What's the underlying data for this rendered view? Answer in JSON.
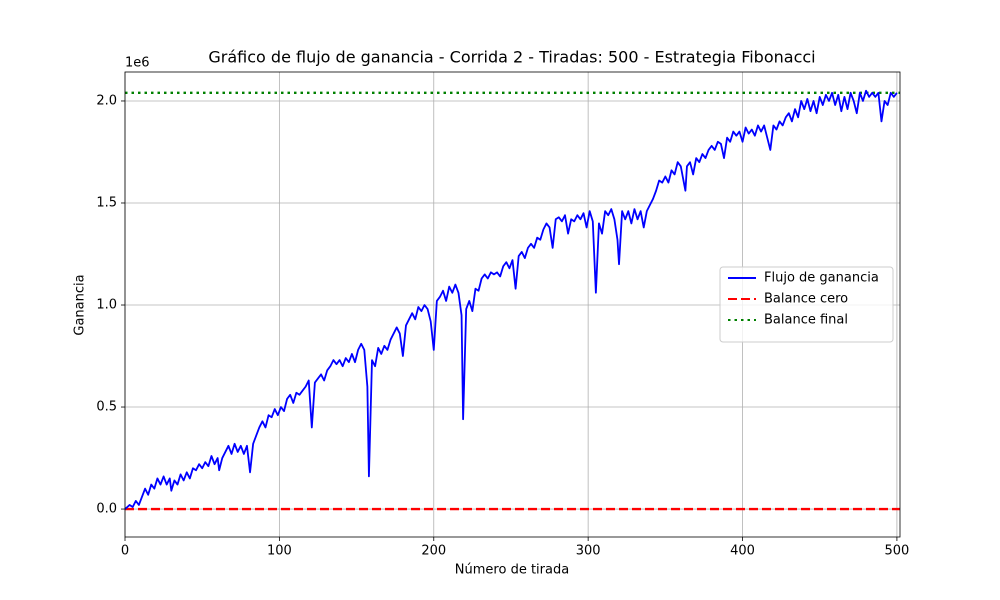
{
  "chart_data": {
    "type": "line",
    "title": "Gráfico de flujo de ganancia - Corrida 2 - Tiradas: 500 - Estrategia Fibonacci",
    "x_label": "Número de tirada",
    "y_label": "Ganancia",
    "y_offset_text": "1e6",
    "xlim": [
      0,
      502
    ],
    "ylim": [
      -137000,
      2142000
    ],
    "xticks": [
      0,
      100,
      200,
      300,
      400,
      500
    ],
    "yticks": [
      {
        "value": 0,
        "label": "0.0"
      },
      {
        "value": 500000,
        "label": "0.5"
      },
      {
        "value": 1000000,
        "label": "1.0"
      },
      {
        "value": 1500000,
        "label": "1.5"
      },
      {
        "value": 2000000,
        "label": "2.0"
      }
    ],
    "grid": true,
    "legend_loc": "center right",
    "series": [
      {
        "name": "Flujo de ganancia",
        "color": "#0000ff",
        "x": [
          0,
          3,
          5,
          7,
          9,
          13,
          15,
          17,
          19,
          21,
          23,
          25,
          27,
          29,
          30,
          32,
          34,
          36,
          38,
          40,
          42,
          44,
          46,
          48,
          50,
          52,
          54,
          56,
          58,
          60,
          61,
          63,
          65,
          67,
          69,
          71,
          73,
          75,
          77,
          79,
          81,
          83,
          85,
          87,
          89,
          91,
          93,
          95,
          97,
          99,
          101,
          103,
          105,
          107,
          109,
          111,
          113,
          115,
          117,
          119,
          121,
          123,
          125,
          127,
          129,
          131,
          133,
          135,
          137,
          139,
          141,
          143,
          145,
          147,
          149,
          151,
          153,
          155,
          157,
          158,
          160,
          162,
          164,
          166,
          168,
          170,
          172,
          174,
          176,
          178,
          180,
          182,
          184,
          186,
          188,
          190,
          192,
          194,
          196,
          198,
          200,
          202,
          204,
          206,
          208,
          210,
          212,
          214,
          216,
          218,
          219,
          221,
          223,
          225,
          227,
          229,
          231,
          233,
          235,
          237,
          239,
          241,
          243,
          245,
          247,
          249,
          251,
          253,
          255,
          257,
          259,
          261,
          263,
          265,
          267,
          269,
          271,
          273,
          275,
          277,
          279,
          281,
          283,
          285,
          287,
          289,
          291,
          293,
          295,
          297,
          299,
          301,
          303,
          305,
          307,
          309,
          311,
          313,
          315,
          317,
          319,
          320,
          322,
          324,
          326,
          328,
          330,
          332,
          334,
          336,
          338,
          340,
          342,
          344,
          346,
          348,
          350,
          352,
          354,
          356,
          358,
          360,
          362,
          363,
          364,
          366,
          368,
          370,
          372,
          374,
          376,
          378,
          380,
          382,
          384,
          386,
          388,
          390,
          392,
          394,
          396,
          398,
          400,
          402,
          404,
          406,
          408,
          410,
          412,
          414,
          416,
          418,
          420,
          422,
          424,
          426,
          428,
          430,
          432,
          434,
          436,
          438,
          440,
          442,
          444,
          446,
          448,
          450,
          452,
          454,
          456,
          458,
          460,
          462,
          464,
          466,
          468,
          470,
          472,
          474,
          476,
          478,
          480,
          482,
          484,
          486,
          488,
          490,
          492,
          494,
          496,
          498,
          500
        ],
        "values": [
          0,
          20000,
          10000,
          40000,
          20000,
          100000,
          70000,
          120000,
          100000,
          150000,
          120000,
          160000,
          120000,
          150000,
          90000,
          140000,
          120000,
          170000,
          140000,
          180000,
          150000,
          200000,
          190000,
          220000,
          200000,
          230000,
          210000,
          260000,
          220000,
          250000,
          190000,
          250000,
          280000,
          310000,
          270000,
          320000,
          280000,
          310000,
          270000,
          310000,
          180000,
          320000,
          360000,
          400000,
          430000,
          400000,
          460000,
          450000,
          490000,
          460000,
          500000,
          480000,
          540000,
          560000,
          520000,
          570000,
          560000,
          580000,
          600000,
          630000,
          400000,
          620000,
          640000,
          660000,
          630000,
          680000,
          700000,
          730000,
          710000,
          730000,
          700000,
          740000,
          720000,
          760000,
          720000,
          780000,
          810000,
          780000,
          600000,
          160000,
          730000,
          700000,
          790000,
          760000,
          800000,
          780000,
          830000,
          860000,
          890000,
          860000,
          750000,
          900000,
          930000,
          960000,
          930000,
          990000,
          970000,
          1000000,
          980000,
          920000,
          780000,
          1020000,
          1040000,
          1070000,
          1020000,
          1090000,
          1060000,
          1100000,
          1060000,
          950000,
          440000,
          980000,
          1020000,
          970000,
          1080000,
          1070000,
          1130000,
          1150000,
          1130000,
          1160000,
          1150000,
          1160000,
          1140000,
          1190000,
          1210000,
          1180000,
          1220000,
          1080000,
          1240000,
          1260000,
          1230000,
          1280000,
          1300000,
          1280000,
          1330000,
          1320000,
          1370000,
          1400000,
          1380000,
          1280000,
          1420000,
          1430000,
          1410000,
          1440000,
          1350000,
          1420000,
          1410000,
          1440000,
          1420000,
          1450000,
          1380000,
          1460000,
          1410000,
          1060000,
          1400000,
          1350000,
          1460000,
          1440000,
          1470000,
          1420000,
          1320000,
          1200000,
          1460000,
          1420000,
          1460000,
          1400000,
          1470000,
          1420000,
          1460000,
          1380000,
          1460000,
          1490000,
          1520000,
          1560000,
          1610000,
          1600000,
          1630000,
          1600000,
          1660000,
          1640000,
          1700000,
          1680000,
          1600000,
          1560000,
          1680000,
          1700000,
          1640000,
          1720000,
          1700000,
          1740000,
          1720000,
          1760000,
          1780000,
          1760000,
          1800000,
          1790000,
          1720000,
          1820000,
          1800000,
          1850000,
          1830000,
          1850000,
          1800000,
          1870000,
          1840000,
          1860000,
          1830000,
          1880000,
          1850000,
          1880000,
          1820000,
          1760000,
          1880000,
          1860000,
          1900000,
          1880000,
          1920000,
          1940000,
          1900000,
          1960000,
          1920000,
          2000000,
          1960000,
          2010000,
          1950000,
          2000000,
          1940000,
          2020000,
          1980000,
          2030000,
          2000000,
          2040000,
          1980000,
          2030000,
          1950000,
          2020000,
          1960000,
          2040000,
          2000000,
          1940000,
          2040000,
          2000000,
          2050000,
          2020000,
          2040000,
          2020000,
          2040000,
          1900000,
          2000000,
          1980000,
          2040000,
          2020000,
          2040000
        ]
      }
    ],
    "hlines": [
      {
        "name": "Balance cero",
        "color": "#ff0000",
        "style": "dashed",
        "value": 0
      },
      {
        "name": "Balance final",
        "color": "#008000",
        "style": "dotted",
        "value": 2040000
      }
    ]
  }
}
